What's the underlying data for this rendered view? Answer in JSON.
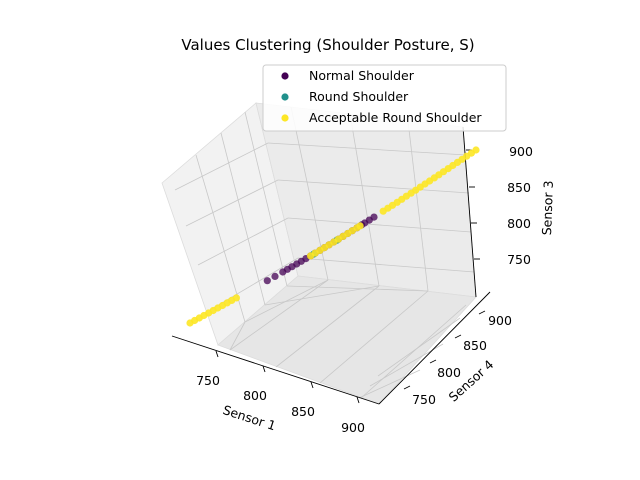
{
  "chart_data": {
    "type": "scatter",
    "projection": "3d",
    "title": "Values Clustering (Shoulder Posture, S)",
    "xlabel": "Sensor 1",
    "ylabel": "Sensor 4",
    "zlabel": "Sensor 3",
    "xlim": [
      715,
      910
    ],
    "ylim": [
      705,
      910
    ],
    "zlim": [
      705,
      910
    ],
    "xticks": [
      "750",
      "800",
      "850",
      "900"
    ],
    "yticks": [
      "750",
      "800",
      "850",
      "900"
    ],
    "zticks": [
      "750",
      "800",
      "850",
      "900"
    ],
    "grid": true,
    "legend_position": "top-right",
    "series": [
      {
        "name": "Normal Shoulder",
        "color": "#440154",
        "points": [
          [
            770,
            770,
            770
          ],
          [
            775,
            775,
            775
          ],
          [
            780,
            780,
            780
          ],
          [
            783,
            783,
            783
          ],
          [
            786,
            786,
            786
          ],
          [
            789,
            789,
            789
          ],
          [
            792,
            792,
            792
          ],
          [
            795,
            795,
            795
          ],
          [
            798,
            798,
            798
          ],
          [
            801,
            801,
            801
          ],
          [
            804,
            804,
            804
          ],
          [
            807,
            807,
            807
          ],
          [
            810,
            810,
            810
          ],
          [
            813,
            813,
            813
          ],
          [
            816,
            816,
            816
          ],
          [
            819,
            819,
            819
          ],
          [
            822,
            822,
            822
          ],
          [
            825,
            825,
            825
          ],
          [
            828,
            828,
            828
          ],
          [
            831,
            831,
            831
          ],
          [
            833,
            833,
            833
          ],
          [
            836,
            836,
            836
          ],
          [
            839,
            839,
            839
          ]
        ]
      },
      {
        "name": "Round Shoulder",
        "color": "#21918c",
        "points": [
          [
            800,
            800,
            800
          ],
          [
            815,
            815,
            815
          ]
        ]
      },
      {
        "name": "Acceptable Round Shoulder",
        "color": "#fde725",
        "points": [
          [
            720,
            720,
            720
          ],
          [
            723,
            723,
            723
          ],
          [
            726,
            726,
            726
          ],
          [
            729,
            729,
            729
          ],
          [
            732,
            732,
            732
          ],
          [
            735,
            735,
            735
          ],
          [
            738,
            738,
            738
          ],
          [
            741,
            741,
            741
          ],
          [
            744,
            744,
            744
          ],
          [
            747,
            747,
            747
          ],
          [
            750,
            750,
            750
          ],
          [
            798,
            798,
            798
          ],
          [
            801,
            801,
            801
          ],
          [
            804,
            804,
            804
          ],
          [
            807,
            807,
            807
          ],
          [
            810,
            810,
            810
          ],
          [
            813,
            813,
            813
          ],
          [
            816,
            816,
            816
          ],
          [
            819,
            819,
            819
          ],
          [
            822,
            822,
            822
          ],
          [
            825,
            825,
            825
          ],
          [
            828,
            828,
            828
          ],
          [
            830,
            830,
            830
          ],
          [
            845,
            845,
            845
          ],
          [
            848,
            848,
            848
          ],
          [
            851,
            851,
            851
          ],
          [
            854,
            854,
            854
          ],
          [
            857,
            857,
            857
          ],
          [
            860,
            860,
            860
          ],
          [
            863,
            863,
            863
          ],
          [
            866,
            866,
            866
          ],
          [
            869,
            869,
            869
          ],
          [
            872,
            872,
            872
          ],
          [
            875,
            875,
            875
          ],
          [
            878,
            878,
            878
          ],
          [
            881,
            881,
            881
          ],
          [
            884,
            884,
            884
          ],
          [
            887,
            887,
            887
          ],
          [
            890,
            890,
            890
          ],
          [
            893,
            893,
            893
          ],
          [
            896,
            896,
            896
          ],
          [
            899,
            899,
            899
          ],
          [
            902,
            902,
            902
          ],
          [
            905,
            905,
            905
          ]
        ]
      }
    ]
  }
}
